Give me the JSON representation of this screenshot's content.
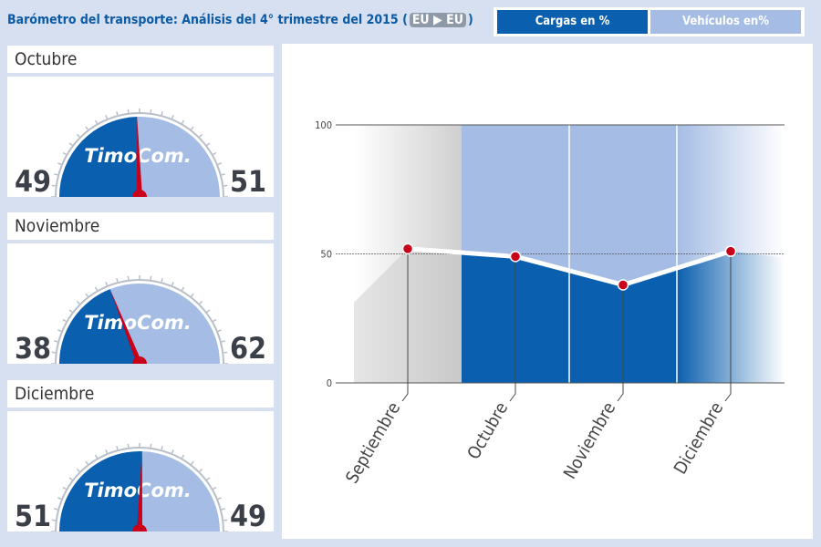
{
  "header": {
    "title": "Barómetro del transporte: Análisis del 4° trimestre del  2015",
    "route_open": "(",
    "route": "EU ▶ EU",
    "route_close": ")"
  },
  "toggle": {
    "cargas": "Cargas en %",
    "vehiculos": "Vehículos en%",
    "active": "cargas"
  },
  "gauges": [
    {
      "month": "Octubre",
      "cargas": 49,
      "vehiculos": 51
    },
    {
      "month": "Noviembre",
      "cargas": 38,
      "vehiculos": 62
    },
    {
      "month": "Diciembre",
      "cargas": 51,
      "vehiculos": 49
    }
  ],
  "logo": "TimoCom.",
  "colors": {
    "dark_blue": "#0a5fae",
    "light_blue": "#a5bde4",
    "needle": "#c8001a",
    "bg": "#d6e0f1"
  },
  "chart_data": {
    "type": "line",
    "categories": [
      "Septiembre",
      "Octubre",
      "Noviembre",
      "Diciembre"
    ],
    "values": [
      52,
      49,
      38,
      51
    ],
    "ylim": [
      0,
      100
    ],
    "yticks": [
      0,
      50,
      100
    ],
    "grid": true
  }
}
